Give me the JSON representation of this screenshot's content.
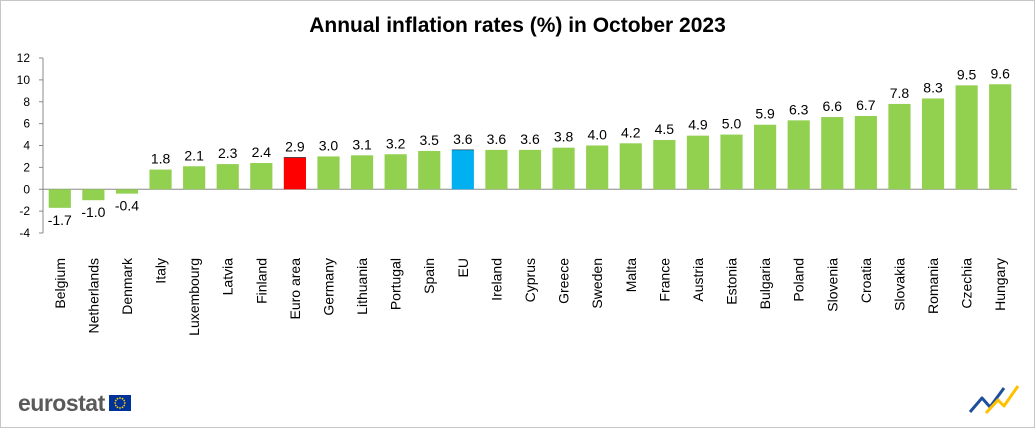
{
  "title": "Annual inflation rates (%) in October 2023",
  "logo_text": "eurostat",
  "colors": {
    "default": "#92d050",
    "euro_area": "#ff0000",
    "eu": "#00b0f0"
  },
  "chart_data": {
    "type": "bar",
    "title": "Annual inflation rates (%) in October 2023",
    "xlabel": "",
    "ylabel": "",
    "ylim": [
      -4,
      12
    ],
    "yticks": [
      -4,
      -2,
      0,
      2,
      4,
      6,
      8,
      10,
      12
    ],
    "grid": false,
    "categories": [
      "Belgium",
      "Netherlands",
      "Denmark",
      "Italy",
      "Luxembourg",
      "Latvia",
      "Finland",
      "Euro area",
      "Germany",
      "Lithuania",
      "Portugal",
      "Spain",
      "EU",
      "Ireland",
      "Cyprus",
      "Greece",
      "Sweden",
      "Malta",
      "France",
      "Austria",
      "Estonia",
      "Bulgaria",
      "Poland",
      "Slovenia",
      "Croatia",
      "Slovakia",
      "Romania",
      "Czechia",
      "Hungary"
    ],
    "values": [
      -1.7,
      -1.0,
      -0.4,
      1.8,
      2.1,
      2.3,
      2.4,
      2.9,
      3.0,
      3.1,
      3.2,
      3.5,
      3.6,
      3.6,
      3.6,
      3.8,
      4.0,
      4.2,
      4.5,
      4.9,
      5.0,
      5.9,
      6.3,
      6.6,
      6.7,
      7.8,
      8.3,
      9.5,
      9.6
    ],
    "value_labels": [
      "-1.7",
      "-1.0",
      "-0.4",
      "1.8",
      "2.1",
      "2.3",
      "2.4",
      "2.9",
      "3.0",
      "3.1",
      "3.2",
      "3.5",
      "3.6",
      "3.6",
      "3.6",
      "3.8",
      "4.0",
      "4.2",
      "4.5",
      "4.9",
      "5.0",
      "5.9",
      "6.3",
      "6.6",
      "6.7",
      "7.8",
      "8.3",
      "9.5",
      "9.6"
    ],
    "highlight": {
      "Euro area": "#ff0000",
      "EU": "#00b0f0"
    }
  }
}
